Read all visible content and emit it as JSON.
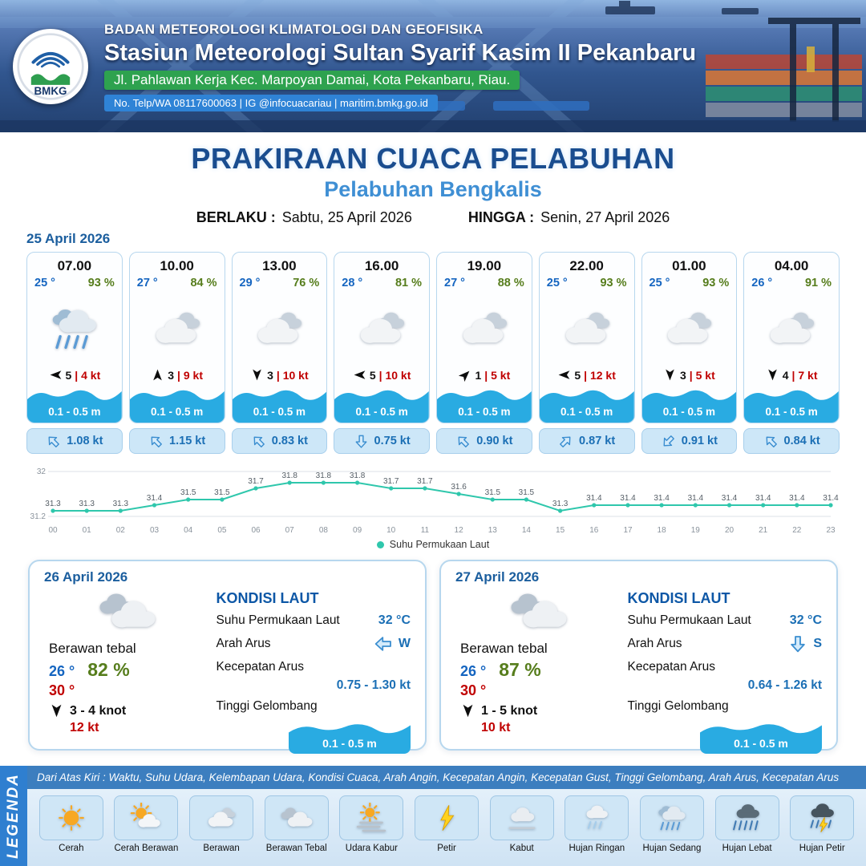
{
  "header": {
    "agency": "BADAN METEOROLOGI KLIMATOLOGI DAN GEOFISIKA",
    "station": "Stasiun Meteorologi Sultan Syarif Kasim II Pekanbaru",
    "address": "Jl. Pahlawan Kerja Kec. Marpoyan Damai, Kota Pekanbaru, Riau.",
    "contact": "No. Telp/WA 08117600063 | IG @infocuacariau | maritim.bmkg.go.id",
    "logo_text": "BMKG"
  },
  "title": {
    "main": "PRAKIRAAN CUACA PELABUHAN",
    "sub": "Pelabuhan Bengkalis",
    "berlaku_label": "BERLAKU :",
    "berlaku_value": "Sabtu, 25 April 2026",
    "hingga_label": "HINGGA :",
    "hingga_value": "Senin, 27 April 2026"
  },
  "forecast_date": "25 April 2026",
  "forecast_cards": [
    {
      "time": "07.00",
      "temp": "25 °",
      "humidity": "93 %",
      "icon": "hujan-sedang",
      "wind": {
        "deg": 270,
        "speed": "5",
        "gust": "| 4 kt"
      },
      "wave": "0.1 - 0.5 m",
      "current": {
        "deg": 315,
        "speed": "1.08 kt"
      }
    },
    {
      "time": "10.00",
      "temp": "27 °",
      "humidity": "84 %",
      "icon": "berawan",
      "wind": {
        "deg": 0,
        "speed": "3",
        "gust": "| 9 kt"
      },
      "wave": "0.1 - 0.5 m",
      "current": {
        "deg": 315,
        "speed": "1.15 kt"
      }
    },
    {
      "time": "13.00",
      "temp": "29 °",
      "humidity": "76 %",
      "icon": "berawan",
      "wind": {
        "deg": 180,
        "speed": "3",
        "gust": "| 10 kt"
      },
      "wave": "0.1 - 0.5 m",
      "current": {
        "deg": 315,
        "speed": "0.83 kt"
      }
    },
    {
      "time": "16.00",
      "temp": "28 °",
      "humidity": "81 %",
      "icon": "berawan",
      "wind": {
        "deg": 270,
        "speed": "5",
        "gust": "| 10 kt"
      },
      "wave": "0.1 - 0.5 m",
      "current": {
        "deg": 180,
        "speed": "0.75 kt"
      }
    },
    {
      "time": "19.00",
      "temp": "27 °",
      "humidity": "88 %",
      "icon": "berawan",
      "wind": {
        "deg": 45,
        "speed": "1",
        "gust": "| 5 kt"
      },
      "wave": "0.1 - 0.5 m",
      "current": {
        "deg": 315,
        "speed": "0.90 kt"
      }
    },
    {
      "time": "22.00",
      "temp": "25 °",
      "humidity": "93 %",
      "icon": "berawan",
      "wind": {
        "deg": 270,
        "speed": "5",
        "gust": "| 12 kt"
      },
      "wave": "0.1 - 0.5 m",
      "current": {
        "deg": 45,
        "speed": "0.87 kt"
      }
    },
    {
      "time": "01.00",
      "temp": "25 °",
      "humidity": "93 %",
      "icon": "berawan",
      "wind": {
        "deg": 180,
        "speed": "3",
        "gust": "| 5 kt"
      },
      "wave": "0.1 - 0.5 m",
      "current": {
        "deg": 225,
        "speed": "0.91 kt"
      }
    },
    {
      "time": "04.00",
      "temp": "26 °",
      "humidity": "91 %",
      "icon": "berawan",
      "wind": {
        "deg": 180,
        "speed": "4",
        "gust": "| 7 kt"
      },
      "wave": "0.1 - 0.5 m",
      "current": {
        "deg": 315,
        "speed": "0.84 kt"
      }
    }
  ],
  "chart_data": {
    "type": "line",
    "legend": "Suhu Permukaan Laut",
    "line_color": "#2fc7ac",
    "ymin": 31.2,
    "ymax": 32,
    "ymin_label": "31.2",
    "ymax_label": "32",
    "hours": [
      "00",
      "01",
      "02",
      "03",
      "04",
      "05",
      "06",
      "07",
      "08",
      "09",
      "10",
      "11",
      "12",
      "13",
      "14",
      "15",
      "16",
      "17",
      "18",
      "19",
      "20",
      "21",
      "22",
      "23"
    ],
    "values": [
      31.3,
      31.3,
      31.3,
      31.4,
      31.5,
      31.5,
      31.7,
      31.8,
      31.8,
      31.8,
      31.7,
      31.7,
      31.6,
      31.5,
      31.5,
      31.3,
      31.4,
      31.4,
      31.4,
      31.4,
      31.4,
      31.4,
      31.4,
      31.4
    ]
  },
  "daily_cards": [
    {
      "date": "26 April 2026",
      "icon": "berawan-tebal",
      "condition": "Berawan tebal",
      "temp_min": "26 °",
      "humidity": "82 %",
      "temp_max": "30 °",
      "wind_deg": 180,
      "wind_range": "3 - 4 knot",
      "gust": "12 kt",
      "sea": {
        "heading": "KONDISI LAUT",
        "sst_label": "Suhu Permukaan Laut",
        "sst": "32 °C",
        "arah_label": "Arah Arus",
        "arah_deg": 270,
        "arah": "W",
        "kec_label": "Kecepatan Arus",
        "kec": "0.75 - 1.30 kt",
        "gel_label": "Tinggi Gelombang",
        "gel": "0.1 - 0.5 m"
      }
    },
    {
      "date": "27 April 2026",
      "icon": "berawan-tebal",
      "condition": "Berawan tebal",
      "temp_min": "26 °",
      "humidity": "87 %",
      "temp_max": "30 °",
      "wind_deg": 180,
      "wind_range": "1 - 5 knot",
      "gust": "10 kt",
      "sea": {
        "heading": "KONDISI LAUT",
        "sst_label": "Suhu Permukaan Laut",
        "sst": "32 °C",
        "arah_label": "Arah Arus",
        "arah_deg": 180,
        "arah": "S",
        "kec_label": "Kecepatan Arus",
        "kec": "0.64 - 1.26 kt",
        "gel_label": "Tinggi Gelombang",
        "gel": "0.1 - 0.5 m"
      }
    }
  ],
  "legend": {
    "title": "LEGENDA",
    "note": "Dari Atas Kiri : Waktu, Suhu Udara, Kelembapan Udara, Kondisi Cuaca, Arah Angin, Kecepatan Angin, Kecepatan Gust, Tinggi Gelombang, Arah Arus, Kecepatan Arus",
    "items": [
      {
        "label": "Cerah",
        "icon": "cerah"
      },
      {
        "label": "Cerah Berawan",
        "icon": "cerah-berawan"
      },
      {
        "label": "Berawan",
        "icon": "berawan"
      },
      {
        "label": "Berawan Tebal",
        "icon": "berawan-tebal"
      },
      {
        "label": "Udara Kabur",
        "icon": "udara-kabur"
      },
      {
        "label": "Petir",
        "icon": "petir"
      },
      {
        "label": "Kabut",
        "icon": "kabut"
      },
      {
        "label": "Hujan Ringan",
        "icon": "hujan-ringan"
      },
      {
        "label": "Hujan Sedang",
        "icon": "hujan-sedang"
      },
      {
        "label": "Hujan Lebat",
        "icon": "hujan-lebat"
      },
      {
        "label": "Hujan Petir",
        "icon": "hujan-petir"
      }
    ]
  },
  "colors": {
    "accent_blue": "#1a4d8f",
    "light_blue": "#3f8fd4",
    "temp_blue": "#1565c0",
    "humidity_green": "#567d1c",
    "gust_red": "#c00000",
    "wave_blue": "#29abe2",
    "sst_line": "#2fc7ac"
  }
}
